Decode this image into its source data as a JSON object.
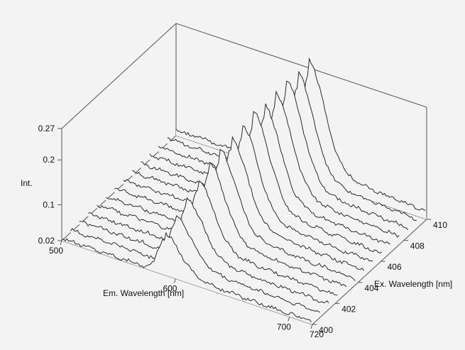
{
  "chart_data": {
    "type": "line",
    "subtype": "3d-waterfall",
    "title": "",
    "xlabel": "Em. Wavelength [nm]",
    "ylabel": "Ex. Wavelength [nm]",
    "zlabel": "Int.",
    "xlim": [
      500,
      720
    ],
    "ylim": [
      400,
      410
    ],
    "zlim": [
      0.02,
      0.27
    ],
    "x_ticks": [
      "500",
      "600",
      "700",
      "720"
    ],
    "y_ticks": [
      "400",
      "402",
      "404",
      "406",
      "408",
      "410"
    ],
    "z_ticks": [
      "0.02",
      "0.1",
      "0.2",
      "0.27"
    ],
    "series_count": 14,
    "peak_em_nm": [
      590,
      592,
      594,
      596,
      598,
      600,
      602,
      604,
      606,
      608,
      610,
      612,
      614,
      616
    ],
    "peak_int": [
      0.1,
      0.12,
      0.14,
      0.16,
      0.18,
      0.19,
      0.2,
      0.21,
      0.22,
      0.22,
      0.23,
      0.24,
      0.24,
      0.25
    ],
    "baseline_int": [
      0.025,
      0.026,
      0.027,
      0.027,
      0.028,
      0.028,
      0.029,
      0.029,
      0.03,
      0.03,
      0.031,
      0.031,
      0.032,
      0.032
    ],
    "grid": false,
    "legend": "none"
  },
  "colors": {
    "background": "#f3f3f3",
    "line": "#2b2b2b",
    "axis": "#555555"
  }
}
